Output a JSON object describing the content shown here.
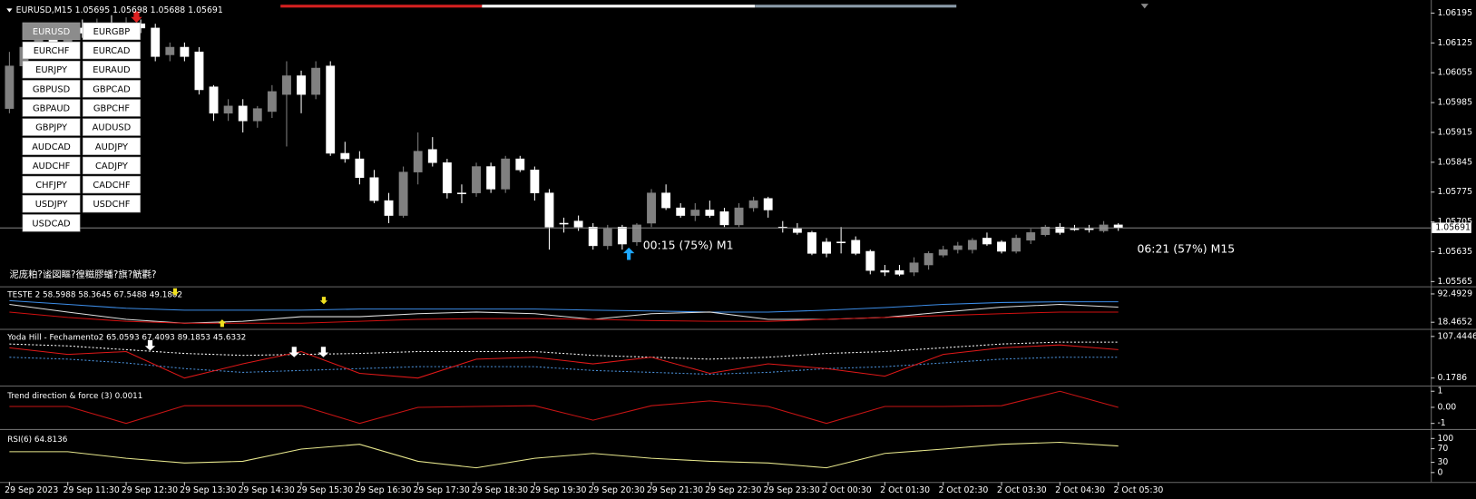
{
  "status_text": "泥庞粕?谧図瞘?徨糍膠蟠?旗?觥氍?",
  "annotations": [
    "00:15 (75%) M1",
    "06:21 (57%) M15"
  ],
  "symbol_buttons": [
    [
      "EURUSD",
      "EURGBP"
    ],
    [
      "EURCHF",
      "EURCAD"
    ],
    [
      "EURJPY",
      "EURAUD"
    ],
    [
      "GBPUSD",
      "GBPCAD"
    ],
    [
      "GBPAUD",
      "GBPCHF"
    ],
    [
      "GBPJPY",
      "AUDUSD"
    ],
    [
      "AUDCAD",
      "AUDJPY"
    ],
    [
      "AUDCHF",
      "CADJPY"
    ],
    [
      "CHFJPY",
      "CADCHF"
    ],
    [
      "USDJPY",
      "USDCHF"
    ],
    [
      "USDCAD"
    ]
  ],
  "chart_data": [
    {
      "type": "candlestick",
      "title": "EURUSD,M15  1.05695 1.05698 1.05688 1.05691",
      "up_color": "#808080",
      "down_color": "#ffffff",
      "current": 1.05691,
      "ylim": [
        1.05556,
        1.06208
      ],
      "yticks": [
        1.06195,
        1.06125,
        1.06055,
        1.05985,
        1.05915,
        1.05845,
        1.05775,
        1.05705,
        1.05635,
        1.05565
      ],
      "categories": [
        "29 Sep 2023",
        null,
        null,
        null,
        "29 Sep 11:30",
        null,
        null,
        null,
        "29 Sep 12:30",
        null,
        null,
        null,
        "29 Sep 13:30",
        null,
        null,
        null,
        "29 Sep 14:30",
        null,
        null,
        null,
        "29 Sep 15:30",
        null,
        null,
        null,
        "29 Sep 16:30",
        null,
        null,
        null,
        "29 Sep 17:30",
        null,
        null,
        null,
        "29 Sep 18:30",
        null,
        null,
        null,
        "29 Sep 19:30",
        null,
        null,
        null,
        "29 Sep 20:30",
        null,
        null,
        null,
        "29 Sep 21:30",
        null,
        null,
        null,
        "29 Sep 22:30",
        null,
        null,
        null,
        "29 Sep 23:30",
        null,
        null,
        null,
        "2 Oct 00:30",
        null,
        null,
        null,
        "2 Oct 01:30",
        null,
        null,
        null,
        "2 Oct 02:30",
        null,
        null,
        null,
        "2 Oct 03:30",
        null,
        null,
        null,
        "2 Oct 04:30",
        null,
        null,
        null,
        "2 Oct 05:30"
      ],
      "candles": [
        [
          1.05971,
          1.06104,
          1.0596,
          1.06071
        ],
        [
          1.06071,
          1.06126,
          1.0606,
          1.06115
        ],
        [
          1.06115,
          1.06148,
          1.06104,
          1.06137
        ],
        [
          1.06137,
          1.0616,
          1.06115,
          1.06126
        ],
        [
          1.06126,
          1.0617,
          1.06115,
          1.0616
        ],
        [
          1.0616,
          1.0618,
          1.06137,
          1.06148
        ],
        [
          1.06148,
          1.06182,
          1.06137,
          1.0617
        ],
        [
          1.0617,
          1.0619,
          1.06148,
          1.0616
        ],
        [
          1.0616,
          1.06185,
          1.06148,
          1.0617
        ],
        [
          1.0617,
          1.0618,
          1.06148,
          1.0616
        ],
        [
          1.0616,
          1.0617,
          1.06082,
          1.06093
        ],
        [
          1.06097,
          1.06126,
          1.06082,
          1.06115
        ],
        [
          1.06115,
          1.06126,
          1.06082,
          1.06093
        ],
        [
          1.06104,
          1.06115,
          1.06004,
          1.06015
        ],
        [
          1.06022,
          1.06026,
          1.05942,
          1.0596
        ],
        [
          1.0596,
          1.05993,
          1.05942,
          1.05977
        ],
        [
          1.05977,
          1.05993,
          1.05915,
          1.05942
        ],
        [
          1.05942,
          1.05977,
          1.05926,
          1.05971
        ],
        [
          1.05964,
          1.06026,
          1.05949,
          1.06011
        ],
        [
          1.06004,
          1.06082,
          1.05882,
          1.06048
        ],
        [
          1.06048,
          1.0606,
          1.0596,
          1.06004
        ],
        [
          1.06004,
          1.06082,
          1.05993,
          1.06066
        ],
        [
          1.06071,
          1.06082,
          1.0586,
          1.05866
        ],
        [
          1.05866,
          1.05893,
          1.05844,
          1.05853
        ],
        [
          1.05853,
          1.05871,
          1.05793,
          1.05809
        ],
        [
          1.05809,
          1.05827,
          1.05749,
          1.05755
        ],
        [
          1.05755,
          1.05773,
          1.05702,
          1.0572
        ],
        [
          1.0572,
          1.05835,
          1.05715,
          1.05822
        ],
        [
          1.05822,
          1.05915,
          1.05793,
          1.05871
        ],
        [
          1.05875,
          1.05904,
          1.05835,
          1.05844
        ],
        [
          1.05844,
          1.05853,
          1.0576,
          1.05773
        ],
        [
          1.05773,
          1.05793,
          1.05749,
          1.05773
        ],
        [
          1.05773,
          1.05844,
          1.05764,
          1.05835
        ],
        [
          1.05835,
          1.05844,
          1.05773,
          1.05782
        ],
        [
          1.05782,
          1.0586,
          1.05773,
          1.05853
        ],
        [
          1.05853,
          1.0586,
          1.05822,
          1.05827
        ],
        [
          1.05827,
          1.05835,
          1.05755,
          1.05773
        ],
        [
          1.05773,
          1.05782,
          1.0564,
          1.05693
        ],
        [
          1.05702,
          1.05715,
          1.0568,
          1.05702
        ],
        [
          1.05707,
          1.0572,
          1.05684,
          1.05693
        ],
        [
          1.05693,
          1.05702,
          1.0564,
          1.05649
        ],
        [
          1.05649,
          1.05698,
          1.0564,
          1.05689
        ],
        [
          1.05693,
          1.05698,
          1.0564,
          1.05653
        ],
        [
          1.05658,
          1.05702,
          1.05649,
          1.05698
        ],
        [
          1.05702,
          1.05782,
          1.05693,
          1.05773
        ],
        [
          1.05773,
          1.05793,
          1.05733,
          1.05738
        ],
        [
          1.05738,
          1.05749,
          1.05715,
          1.0572
        ],
        [
          1.0572,
          1.05749,
          1.05707,
          1.05733
        ],
        [
          1.05733,
          1.05755,
          1.05715,
          1.0572
        ],
        [
          1.05729,
          1.05738,
          1.05693,
          1.05698
        ],
        [
          1.05698,
          1.05749,
          1.05693,
          1.05738
        ],
        [
          1.05738,
          1.05764,
          1.05729,
          1.05755
        ],
        [
          1.0576,
          1.05764,
          1.05715,
          1.05733
        ],
        [
          1.05693,
          1.05707,
          1.0568,
          1.05693
        ],
        [
          1.05689,
          1.05702,
          1.05675,
          1.0568
        ],
        [
          1.0568,
          1.05684,
          1.05627,
          1.05631
        ],
        [
          1.05658,
          1.05667,
          1.05622,
          1.05631
        ],
        [
          1.05658,
          1.05693,
          1.05631,
          1.05658
        ],
        [
          1.05662,
          1.05671,
          1.05627,
          1.05631
        ],
        [
          1.05636,
          1.0564,
          1.05582,
          1.05591
        ],
        [
          1.05591,
          1.05604,
          1.05578,
          1.05587
        ],
        [
          1.05591,
          1.05604,
          1.05578,
          1.05582
        ],
        [
          1.05587,
          1.05622,
          1.05578,
          1.05609
        ],
        [
          1.05604,
          1.05636,
          1.05593,
          1.05631
        ],
        [
          1.05627,
          1.05649,
          1.05622,
          1.0564
        ],
        [
          1.0564,
          1.05658,
          1.05631,
          1.05649
        ],
        [
          1.0564,
          1.05667,
          1.05631,
          1.05662
        ],
        [
          1.05667,
          1.0568,
          1.05649,
          1.05653
        ],
        [
          1.05658,
          1.05662,
          1.05631,
          1.05636
        ],
        [
          1.05636,
          1.05675,
          1.05631,
          1.05667
        ],
        [
          1.05662,
          1.05689,
          1.05653,
          1.0568
        ],
        [
          1.05675,
          1.05698,
          1.05671,
          1.05693
        ],
        [
          1.05693,
          1.05702,
          1.05675,
          1.0568
        ],
        [
          1.05689,
          1.05698,
          1.05684,
          1.05689
        ],
        [
          1.05689,
          1.05698,
          1.0568,
          1.05689
        ],
        [
          1.05684,
          1.05707,
          1.0568,
          1.05698
        ],
        [
          1.05698,
          1.05702,
          1.05684,
          1.05691
        ]
      ]
    },
    {
      "type": "line",
      "title": "TESTE 2 58.5988 58.3645 67.5488 49.1802",
      "ylim": [
        3.66,
        107.3
      ],
      "yticks": [
        92.4929,
        18.4652
      ],
      "series": [
        {
          "color": "#3c8ce6",
          "values": [
            75,
            65,
            55,
            50,
            50,
            50,
            53,
            53,
            53,
            53,
            50,
            48,
            45,
            45,
            50,
            57,
            65,
            70,
            72,
            72
          ]
        },
        {
          "color": "#e0e0e0",
          "values": [
            65,
            45,
            26,
            16,
            21,
            33,
            33,
            41,
            45,
            41,
            26,
            41,
            45,
            26,
            26,
            31,
            45,
            58,
            65,
            58
          ]
        },
        {
          "color": "#d01010",
          "values": [
            45,
            31,
            21,
            16,
            16,
            16,
            21,
            26,
            28,
            28,
            26,
            23,
            21,
            21,
            26,
            31,
            36,
            41,
            45,
            45
          ]
        }
      ]
    },
    {
      "type": "line",
      "title": "Yoda Hill - Fechamento2 65.0593 67.4093 89.1853 45.6332",
      "ylim": [
        -16.89,
        122.07
      ],
      "yticks": [
        107.4446,
        0.1786
      ],
      "series": [
        {
          "color": "#ffffff",
          "dashed": true,
          "values": [
            87.9,
            83.1,
            73.3,
            63.6,
            58.7,
            61.1,
            63.6,
            68.4,
            68.4,
            68.4,
            58.7,
            53.8,
            48.9,
            53.8,
            63.6,
            68.4,
            78.2,
            87.9,
            92.8,
            92.8
          ]
        },
        {
          "color": "#4a90d9",
          "dashed": true,
          "values": [
            53.8,
            48.9,
            39.2,
            24.5,
            14.8,
            19.7,
            24.5,
            29.4,
            29.4,
            29.4,
            19.7,
            14.8,
            9.9,
            14.8,
            24.5,
            29.4,
            39.2,
            48.9,
            53.8,
            53.8
          ]
        },
        {
          "color": "#e01818",
          "values": [
            78.2,
            61.1,
            68.4,
            0.2,
            36.7,
            68.4,
            12.3,
            0.2,
            48.9,
            53.8,
            36.7,
            53.8,
            12.3,
            36.7,
            24.5,
            5.0,
            61.1,
            78.2,
            85.5,
            73.3
          ]
        }
      ]
    },
    {
      "type": "line",
      "title": "Trend direction & force (3) 0.0011",
      "ylim": [
        -1.235,
        1.235
      ],
      "yticks": [
        1,
        {
          "value": 0,
          "label": "0.00"
        },
        -1
      ],
      "series": [
        {
          "color": "#c81414",
          "values": [
            0.05,
            0.05,
            -1,
            0.1,
            0.1,
            0.1,
            -1,
            0,
            0.05,
            0.1,
            -0.8,
            0.1,
            0.4,
            0.05,
            -1,
            0.05,
            0.05,
            0.1,
            1,
            0
          ]
        }
      ]
    },
    {
      "type": "line",
      "title": "RSI(6) 64.8136",
      "ylim": [
        -22.2,
        122.2
      ],
      "yticks": [
        100,
        70,
        30,
        0
      ],
      "series": [
        {
          "color": "#e6e68c",
          "values": [
            61,
            61,
            42,
            28,
            33,
            69,
            83,
            33,
            14,
            42,
            56,
            42,
            33,
            28,
            14,
            56,
            69,
            83,
            89,
            78
          ]
        }
      ]
    }
  ]
}
